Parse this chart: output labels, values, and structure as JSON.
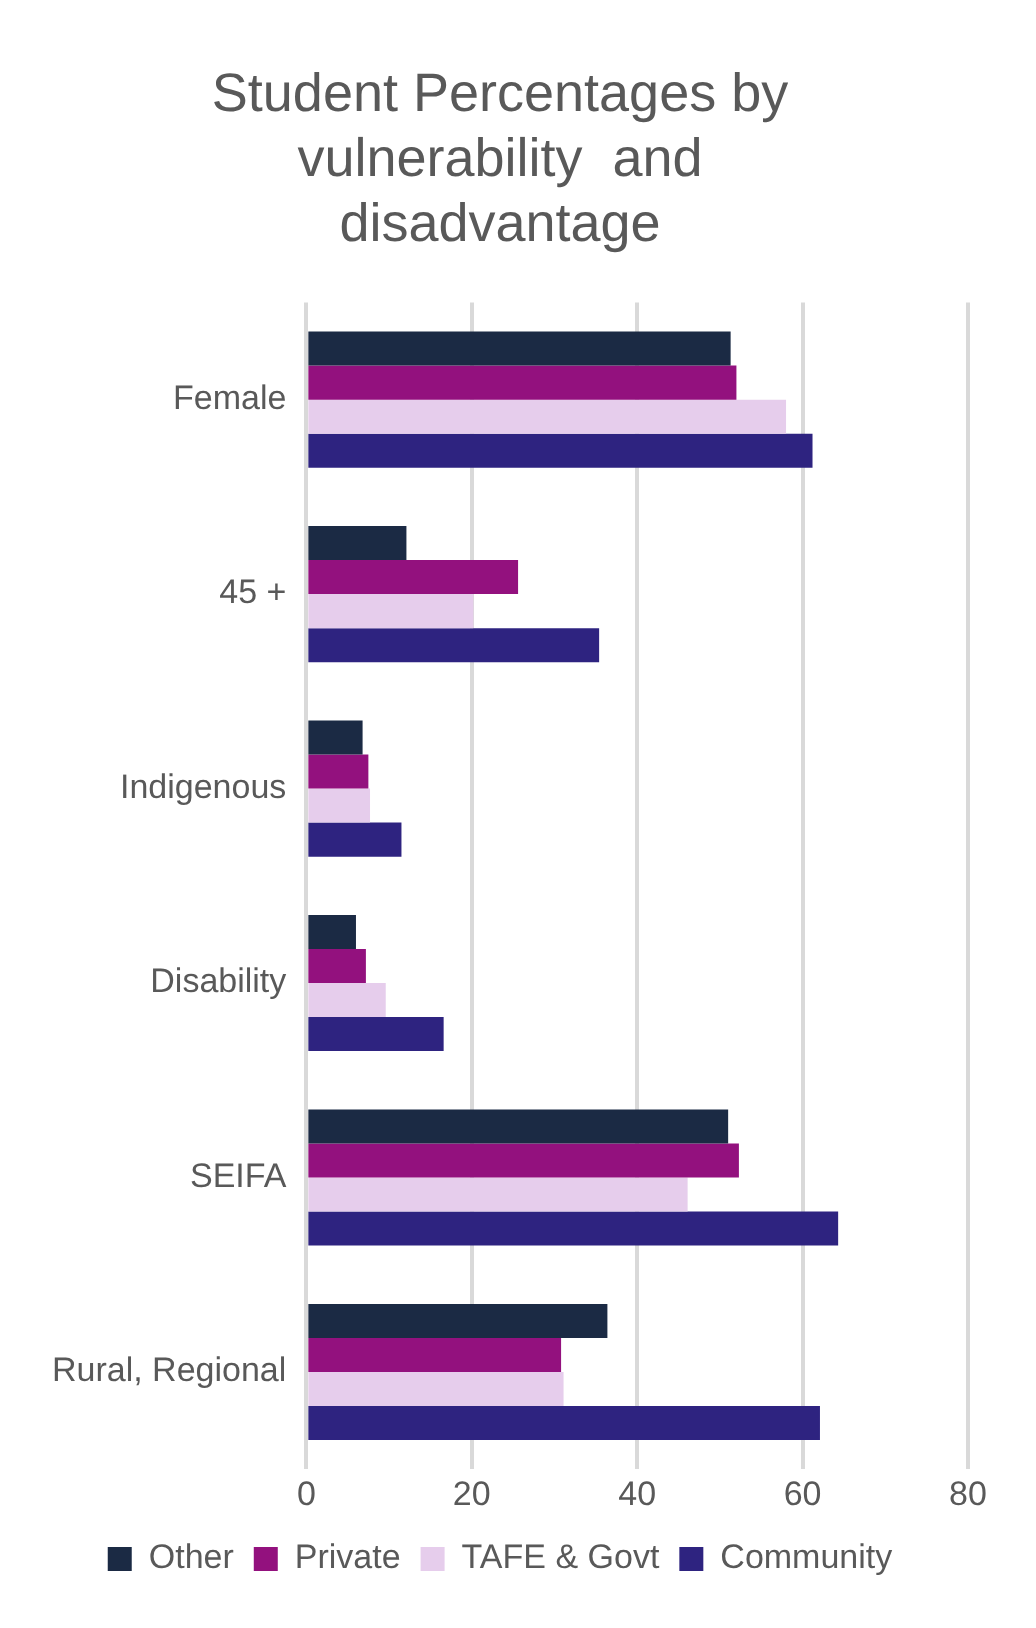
{
  "chart_data": {
    "type": "bar",
    "orientation": "horizontal",
    "title": "Student Percentages by vulnerability  and disadvantage",
    "categories": [
      "Female",
      "45 +",
      "Indigenous",
      "Disability",
      "SEIFA",
      "Rural, Regional"
    ],
    "series": [
      {
        "name": "Other",
        "color": "#1b2a44",
        "values": [
          51.3,
          12.1,
          6.8,
          6.0,
          51.0,
          36.4
        ]
      },
      {
        "name": "Private",
        "color": "#93117e",
        "values": [
          52.0,
          25.6,
          7.5,
          7.2,
          52.3,
          30.8
        ]
      },
      {
        "name": "TAFE & Govt",
        "color": "#e6cdec",
        "values": [
          58.0,
          20.2,
          7.7,
          9.6,
          46.1,
          31.1
        ]
      },
      {
        "name": "Community",
        "color": "#2e2380",
        "values": [
          61.2,
          35.4,
          11.5,
          16.6,
          64.3,
          62.1
        ]
      }
    ],
    "xlim": [
      0,
      80
    ],
    "xticks": [
      0,
      20,
      40,
      60,
      80
    ],
    "grid": "x",
    "legend": "bottom"
  }
}
